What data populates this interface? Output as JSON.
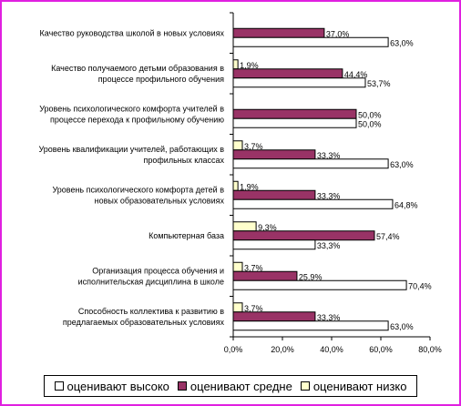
{
  "chart_data": {
    "type": "bar",
    "orientation": "horizontal",
    "categories": [
      [
        "Качество руководства школой в новых условиях"
      ],
      [
        "Качество получаемого детьми образования в",
        "процессе профильного обучения"
      ],
      [
        "Уровень психологического комфорта учителей в",
        "процессе перехода к профильному обучению"
      ],
      [
        "Уровень квалификации учителей, работающих в",
        "профильных классах"
      ],
      [
        "Уровень психологического комфорта детей в",
        "новых образовательных условиях"
      ],
      [
        "Компьютерная база"
      ],
      [
        "Организация процесса обучения и",
        "исполнительская дисциплина в школе"
      ],
      [
        "Способность коллектива к развитию в",
        "предлагаемых образовательных условиях"
      ]
    ],
    "series": [
      {
        "name": "оценивают низко",
        "color": "#ffffcc",
        "values": [
          null,
          1.9,
          null,
          3.7,
          1.9,
          9.3,
          3.7,
          3.7
        ],
        "labels": [
          "",
          "1,9%",
          "",
          "3,7%",
          "1,9%",
          "9,3%",
          "3,7%",
          "3,7%"
        ]
      },
      {
        "name": "оценивают средне",
        "color": "#993366",
        "values": [
          37.0,
          44.4,
          50.0,
          33.3,
          33.3,
          57.4,
          25.9,
          33.3
        ],
        "labels": [
          "37,0%",
          "44,4%",
          "50,0%",
          "33,3%",
          "33,3%",
          "57,4%",
          "25,9%",
          "33,3%"
        ]
      },
      {
        "name": "оценивают высоко",
        "color": "#ffffff",
        "values": [
          63.0,
          53.7,
          50.0,
          63.0,
          64.8,
          33.3,
          70.4,
          63.0
        ],
        "labels": [
          "63,0%",
          "53,7%",
          "50,0%",
          "63,0%",
          "64,8%",
          "33,3%",
          "70,4%",
          "63,0%"
        ]
      }
    ],
    "xlim": [
      0,
      80
    ],
    "xticks": [
      "0,0%",
      "20,0%",
      "40,0%",
      "60,0%",
      "80,0%"
    ],
    "legend": {
      "position": "bottom",
      "order": [
        "оценивают высоко",
        "оценивают средне",
        "оценивают низко"
      ]
    },
    "grid": false
  }
}
